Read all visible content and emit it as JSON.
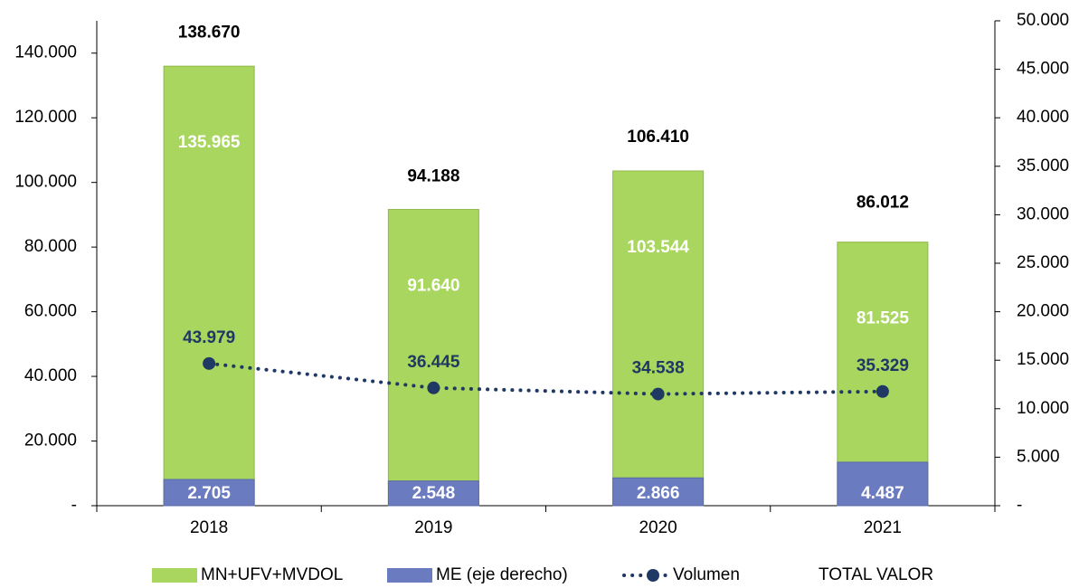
{
  "chart_data": {
    "type": "bar",
    "categories": [
      "2018",
      "2019",
      "2020",
      "2021"
    ],
    "series": [
      {
        "name": "MN+UFV+MVDOL",
        "color": "#a9d65f",
        "values": [
          135965,
          91640,
          103544,
          81525
        ],
        "value_labels": [
          "135.965",
          "91.640",
          "103.544",
          "81.525"
        ]
      },
      {
        "name": "ME (eje derecho)",
        "color": "#6a7bbf",
        "axis": "y2",
        "values": [
          2705,
          2548,
          2866,
          4487
        ],
        "value_labels": [
          "2.705",
          "2.548",
          "2.866",
          "4.487"
        ]
      },
      {
        "name": "Volumen",
        "type": "line",
        "color": "#1f3864",
        "values": [
          43979,
          36445,
          34538,
          35329
        ],
        "value_labels": [
          "43.979",
          "36.445",
          "34.538",
          "35.329"
        ]
      },
      {
        "name": "TOTAL VALOR",
        "type": "label",
        "values": [
          138670,
          94188,
          106410,
          86012
        ],
        "value_labels": [
          "138.670",
          "94.188",
          "106.410",
          "86.012"
        ]
      }
    ],
    "ylim": [
      0,
      150000
    ],
    "yticks": [
      {
        "value": 0,
        "label": "-"
      },
      {
        "value": 20000,
        "label": "20.000"
      },
      {
        "value": 40000,
        "label": "40.000"
      },
      {
        "value": 60000,
        "label": "60.000"
      },
      {
        "value": 80000,
        "label": "80.000"
      },
      {
        "value": 100000,
        "label": "100.000"
      },
      {
        "value": 120000,
        "label": "120.000"
      },
      {
        "value": 140000,
        "label": "140.000"
      }
    ],
    "y2lim": [
      0,
      50000
    ],
    "y2ticks": [
      {
        "value": 0,
        "label": "-"
      },
      {
        "value": 5000,
        "label": "5.000"
      },
      {
        "value": 10000,
        "label": "10.000"
      },
      {
        "value": 15000,
        "label": "15.000"
      },
      {
        "value": 20000,
        "label": "20.000"
      },
      {
        "value": 25000,
        "label": "25.000"
      },
      {
        "value": 30000,
        "label": "30.000"
      },
      {
        "value": 35000,
        "label": "35.000"
      },
      {
        "value": 40000,
        "label": "40.000"
      },
      {
        "value": 45000,
        "label": "45.000"
      },
      {
        "value": 50000,
        "label": "50.000"
      }
    ]
  }
}
